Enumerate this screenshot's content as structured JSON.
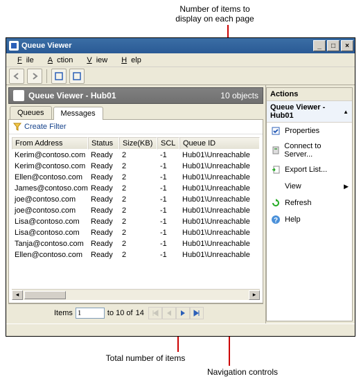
{
  "callouts": {
    "top1": "Number of items to",
    "top2": "display on each page",
    "bottom_total": "Total number of items",
    "bottom_nav": "Navigation controls"
  },
  "window": {
    "title": "Queue Viewer",
    "menus": [
      "File",
      "Action",
      "View",
      "Help"
    ]
  },
  "header": {
    "title": "Queue Viewer - Hub01",
    "count": "10 objects"
  },
  "tabs": {
    "tab0": "Queues",
    "tab1": "Messages"
  },
  "filter": {
    "label": "Create Filter"
  },
  "columns": {
    "from": "From Address",
    "status": "Status",
    "size": "Size(KB)",
    "scl": "SCL",
    "qid": "Queue ID"
  },
  "rows": [
    {
      "from": "Kerim@contoso.com",
      "status": "Ready",
      "size": "2",
      "scl": "-1",
      "qid": "Hub01\\Unreachable"
    },
    {
      "from": "Kerim@contoso.com",
      "status": "Ready",
      "size": "2",
      "scl": "-1",
      "qid": "Hub01\\Unreachable"
    },
    {
      "from": "Ellen@contoso.com",
      "status": "Ready",
      "size": "2",
      "scl": "-1",
      "qid": "Hub01\\Unreachable"
    },
    {
      "from": "James@contoso.com",
      "status": "Ready",
      "size": "2",
      "scl": "-1",
      "qid": "Hub01\\Unreachable"
    },
    {
      "from": "joe@contoso.com",
      "status": "Ready",
      "size": "2",
      "scl": "-1",
      "qid": "Hub01\\Unreachable"
    },
    {
      "from": "joe@contoso.com",
      "status": "Ready",
      "size": "2",
      "scl": "-1",
      "qid": "Hub01\\Unreachable"
    },
    {
      "from": "Lisa@contoso.com",
      "status": "Ready",
      "size": "2",
      "scl": "-1",
      "qid": "Hub01\\Unreachable"
    },
    {
      "from": "Lisa@contoso.com",
      "status": "Ready",
      "size": "2",
      "scl": "-1",
      "qid": "Hub01\\Unreachable"
    },
    {
      "from": "Tanja@contoso.com",
      "status": "Ready",
      "size": "2",
      "scl": "-1",
      "qid": "Hub01\\Unreachable"
    },
    {
      "from": "Ellen@contoso.com",
      "status": "Ready",
      "size": "2",
      "scl": "-1",
      "qid": "Hub01\\Unreachable"
    }
  ],
  "pager": {
    "items_label": "Items",
    "from": "1",
    "to_label": "to 10 of",
    "total": "14"
  },
  "actions": {
    "title": "Actions",
    "subtitle": "Queue Viewer - Hub01",
    "items": {
      "props": "Properties",
      "connect": "Connect to Server...",
      "export": "Export List...",
      "view": "View",
      "refresh": "Refresh",
      "help": "Help"
    }
  },
  "colors": {
    "annotation": "#cc0000",
    "titlebar_top": "#3b6ea5",
    "titlebar_bottom": "#2a5a95",
    "chrome": "#ece9d8",
    "border": "#aca899",
    "header_gray": "#707070",
    "nav_enabled": "#2b5fb8"
  }
}
